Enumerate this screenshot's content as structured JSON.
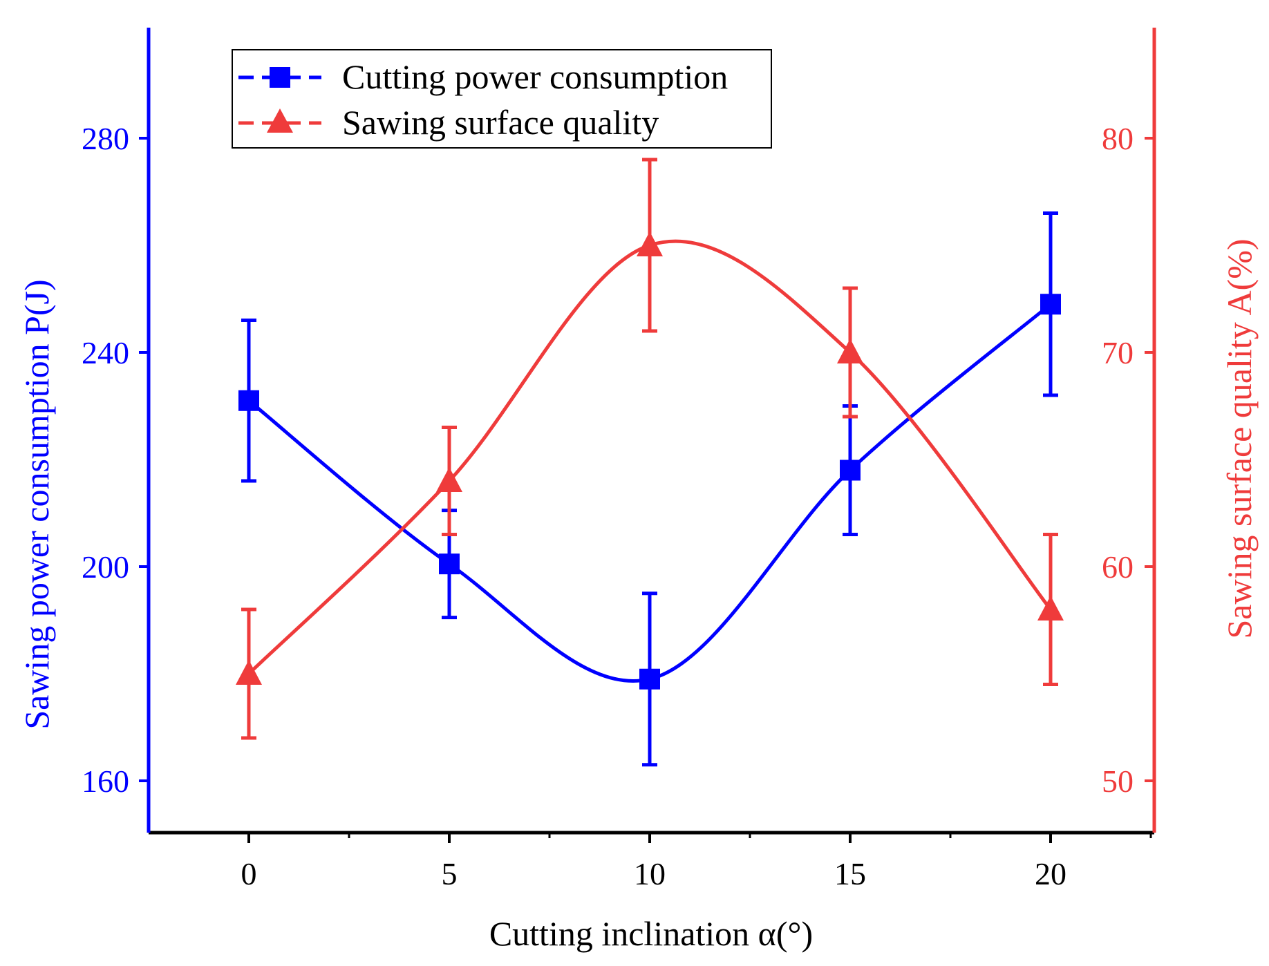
{
  "chart_data": {
    "type": "line",
    "x": [
      0,
      5,
      10,
      15,
      20
    ],
    "xlabel": "Cutting inclination α(°)",
    "xlim": [
      -2.5,
      22.5
    ],
    "xticks": [
      0,
      5,
      10,
      15,
      20
    ],
    "y_left": {
      "label": "Sawing power consumption P(J)",
      "lim": [
        150,
        300
      ],
      "ticks": [
        160,
        200,
        240,
        280
      ],
      "color": "#0000ff"
    },
    "y_right": {
      "label": "Sawing surface quality A(%)",
      "lim": [
        47.5,
        85.5
      ],
      "ticks": [
        50,
        60,
        70,
        80
      ],
      "color": "#ef3b3b"
    },
    "series": [
      {
        "name": "Cutting power consumption",
        "axis": "left",
        "marker": "square",
        "color": "#0000ff",
        "values": [
          231,
          200.5,
          179,
          218,
          249
        ],
        "error": [
          15,
          10,
          16,
          12,
          17
        ]
      },
      {
        "name": "Sawing surface quality",
        "axis": "right",
        "marker": "triangle",
        "color": "#ef3b3b",
        "values": [
          55,
          64,
          75,
          70,
          58
        ],
        "error": [
          3,
          2.5,
          4,
          3,
          3.5
        ]
      }
    ],
    "legend": "top-left"
  }
}
